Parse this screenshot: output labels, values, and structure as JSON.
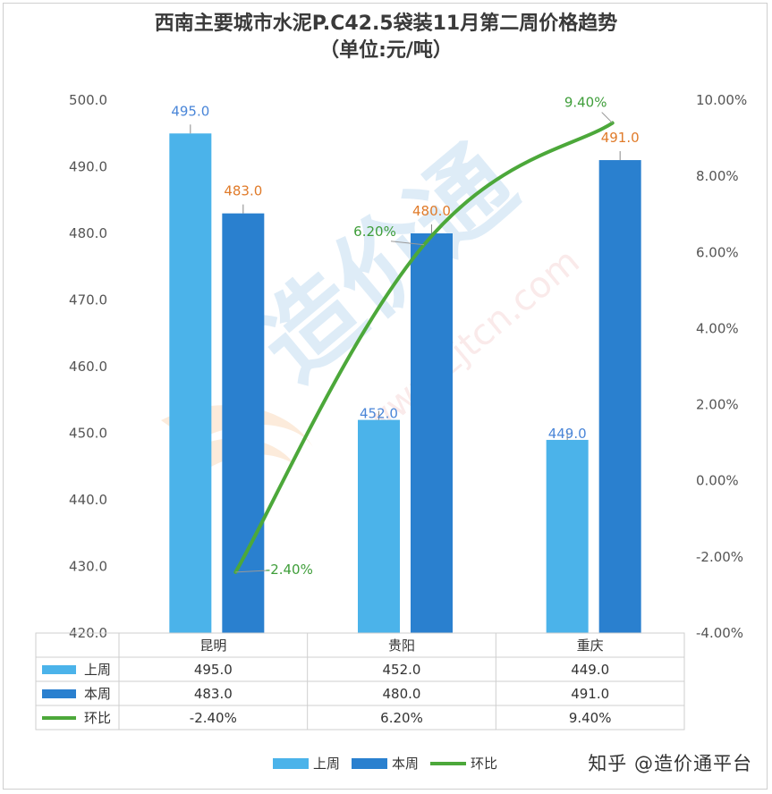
{
  "title_line1": "西南主要城市水泥P.C42.5袋装11月第二周价格趋势",
  "title_line2": "（单位:元/吨）",
  "watermark": "知乎 @造价通平台",
  "colors": {
    "last_week": "#4bb3ea",
    "this_week": "#2a80cf",
    "ratio": "#4ca83a",
    "last_label": "#4a86d8",
    "this_label": "#e07b2a",
    "ratio_label": "#3f9e3a"
  },
  "chart_data": {
    "type": "bar",
    "categories": [
      "昆明",
      "贵阳",
      "重庆"
    ],
    "series": [
      {
        "name": "上周",
        "type": "bar",
        "values": [
          495.0,
          452.0,
          449.0
        ],
        "labels": [
          "495.0",
          "452.0",
          "449.0"
        ]
      },
      {
        "name": "本周",
        "type": "bar",
        "values": [
          483.0,
          480.0,
          491.0
        ],
        "labels": [
          "483.0",
          "480.0",
          "491.0"
        ]
      },
      {
        "name": "环比",
        "type": "line",
        "axis": "right",
        "values": [
          -2.4,
          6.2,
          9.4
        ],
        "labels": [
          "-2.40%",
          "6.20%",
          "9.40%"
        ]
      }
    ],
    "y_left": {
      "ylim": [
        420,
        500
      ],
      "ticks": [
        "500.0",
        "490.0",
        "480.0",
        "470.0",
        "460.0",
        "450.0",
        "440.0",
        "430.0",
        "420.0"
      ]
    },
    "y_right": {
      "ylim": [
        -4,
        10
      ],
      "ticks": [
        "10.00%",
        "8.00%",
        "6.00%",
        "4.00%",
        "2.00%",
        "0.00%",
        "-2.00%",
        "-4.00%"
      ]
    },
    "table": {
      "rows": [
        {
          "name": "上周",
          "cells": [
            "495.0",
            "452.0",
            "449.0"
          ]
        },
        {
          "name": "本周",
          "cells": [
            "483.0",
            "480.0",
            "491.0"
          ]
        },
        {
          "name": "环比",
          "cells": [
            "-2.40%",
            "6.20%",
            "9.40%"
          ]
        }
      ]
    },
    "legend": [
      "上周",
      "本周",
      "环比"
    ],
    "legend_position": "bottom"
  }
}
